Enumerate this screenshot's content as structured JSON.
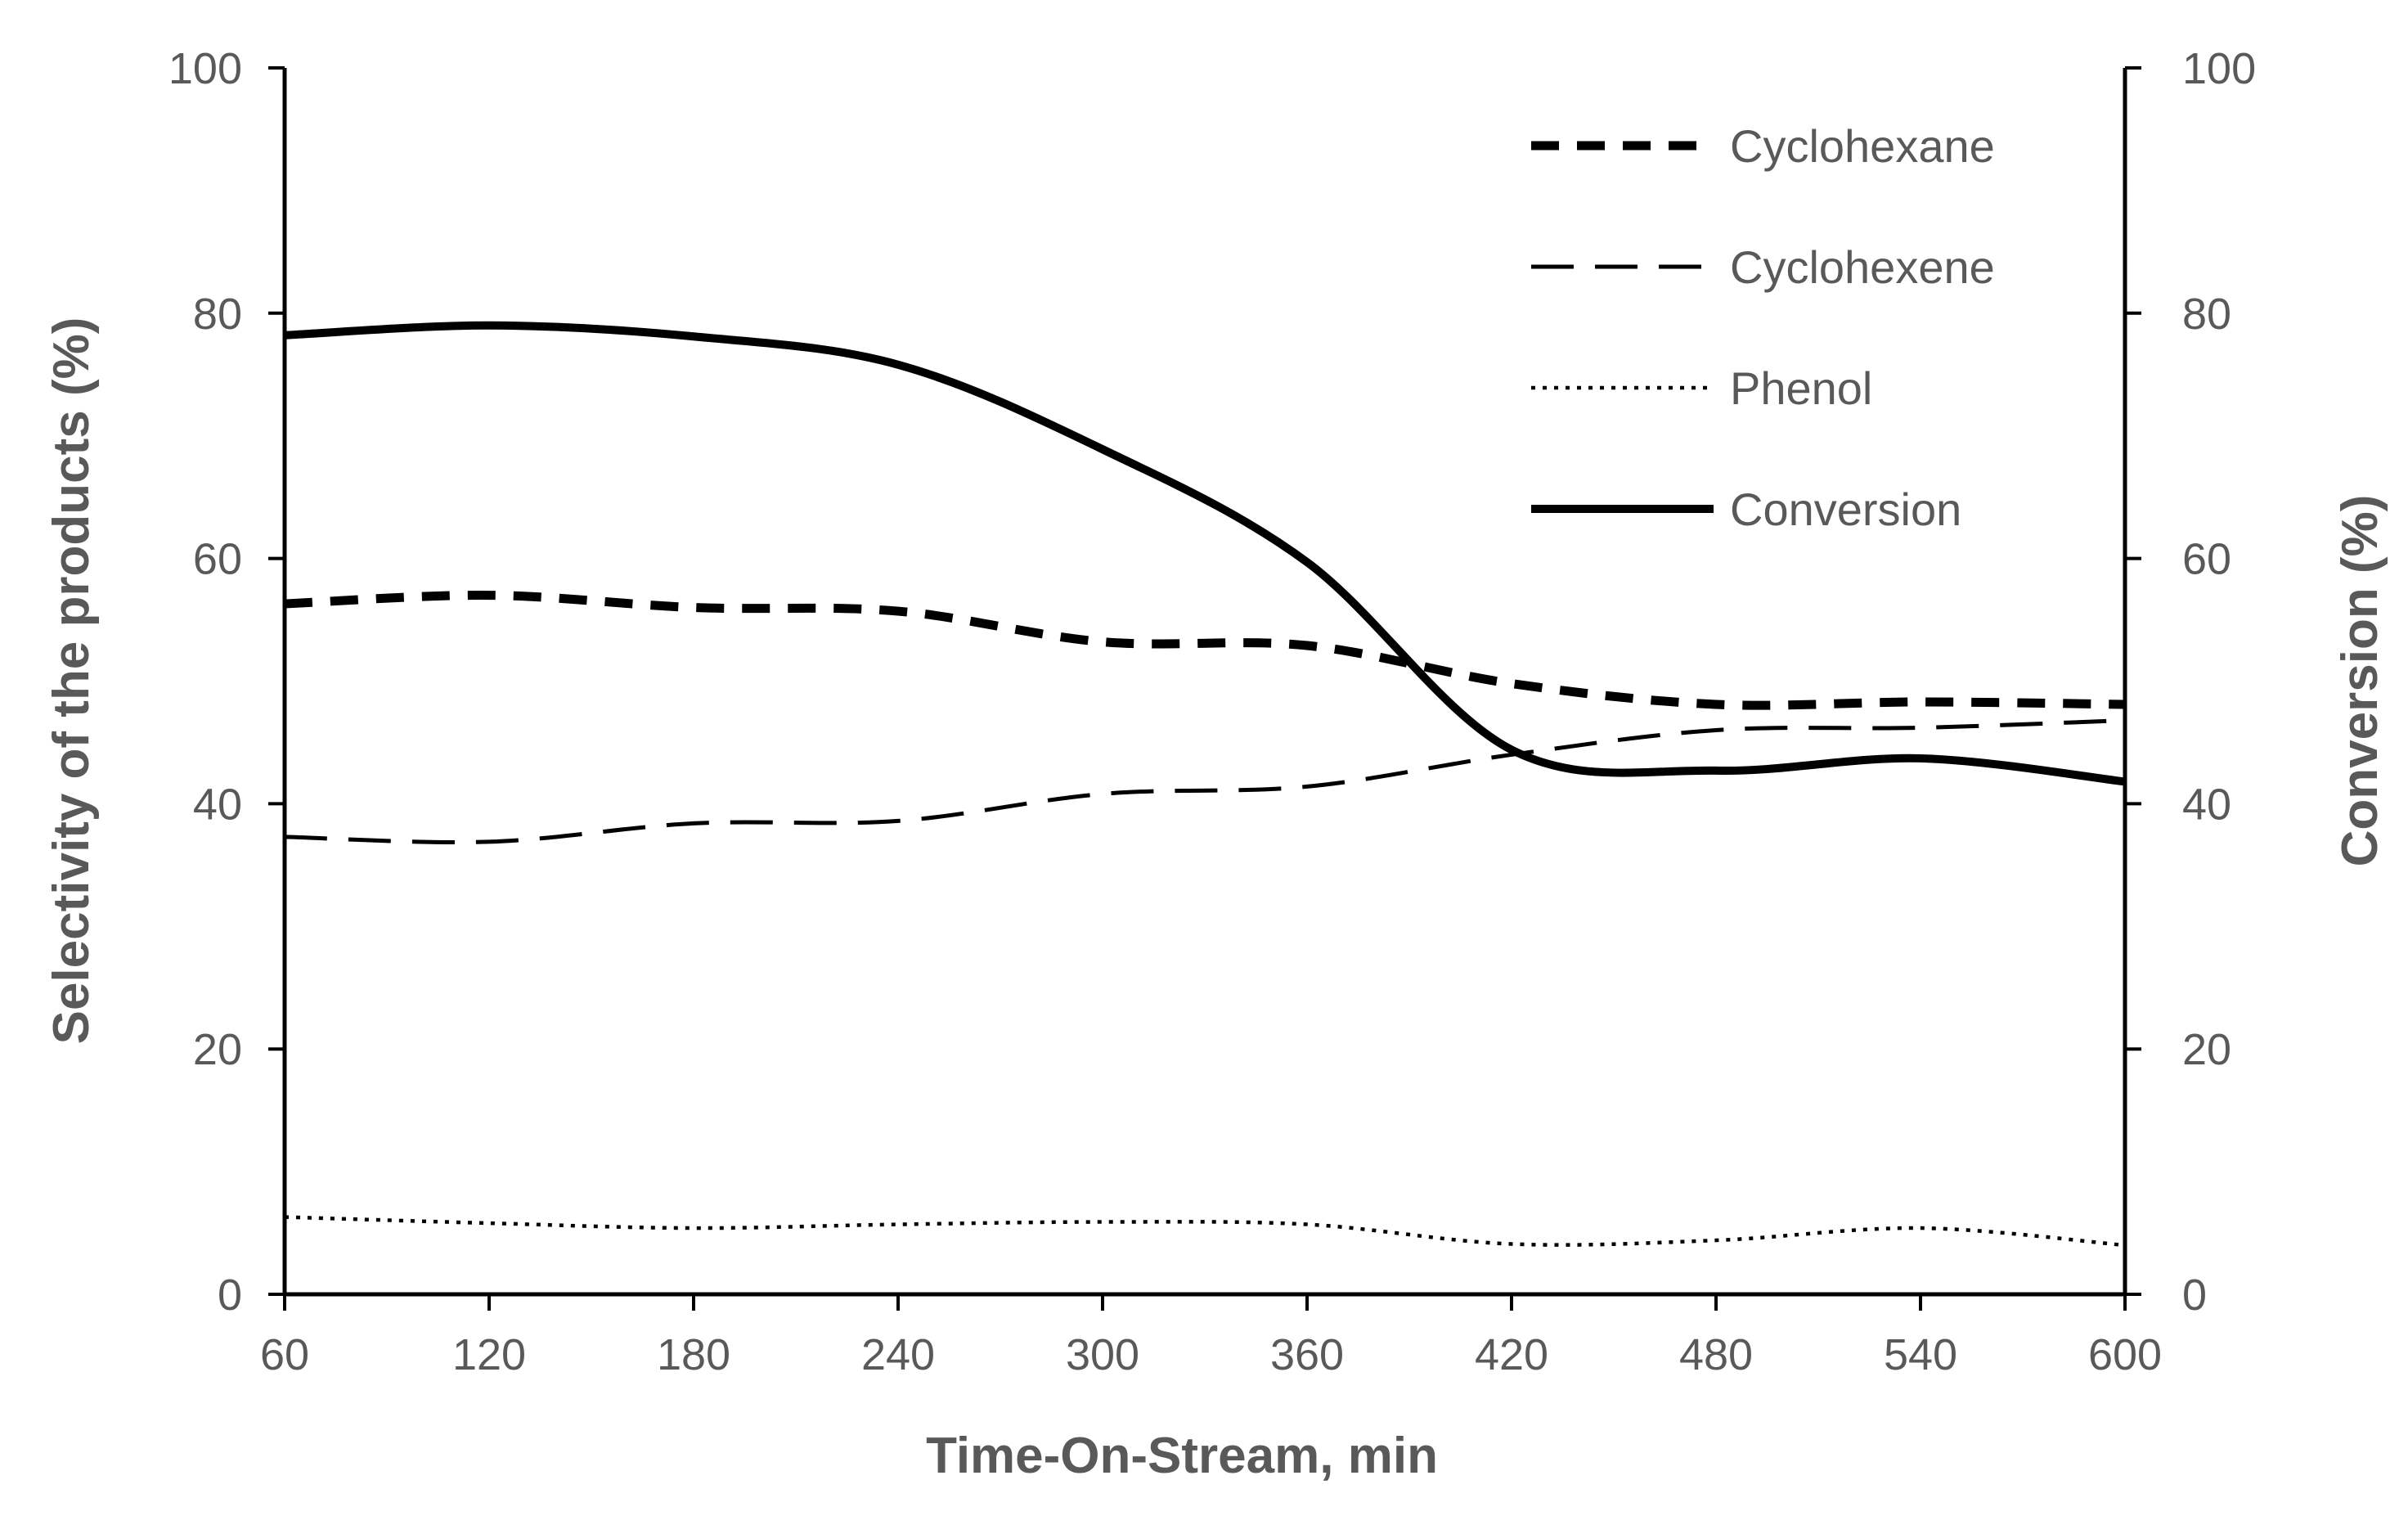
{
  "chart_data": {
    "type": "line",
    "title": "",
    "xlabel": "Time-On-Stream, min",
    "ylabel_left": "Selectivity of the products (%)",
    "ylabel_right": "Conversion (%)",
    "xlim": [
      60,
      600
    ],
    "ylim_left": [
      0,
      100
    ],
    "ylim_right": [
      0,
      100
    ],
    "x_ticks": [
      "60",
      "120",
      "180",
      "240",
      "300",
      "360",
      "420",
      "480",
      "540",
      "600"
    ],
    "y_ticks_left": [
      "0",
      "20",
      "40",
      "60",
      "80",
      "100"
    ],
    "y_ticks_right": [
      "0",
      "20",
      "40",
      "60",
      "80",
      "100"
    ],
    "grid": false,
    "legend_position": "top-right",
    "x": [
      60,
      120,
      180,
      240,
      300,
      360,
      420,
      480,
      540,
      600
    ],
    "series": [
      {
        "name": "Cyclohexane",
        "axis": "left",
        "style": "short-dash-thick",
        "color": "#000000",
        "values": [
          56.3,
          57.0,
          56.0,
          55.7,
          53.2,
          52.9,
          49.8,
          48.1,
          48.3,
          48.1
        ]
      },
      {
        "name": "Cyclohexene",
        "axis": "left",
        "style": "long-dash",
        "color": "#000000",
        "values": [
          37.3,
          36.9,
          38.4,
          38.6,
          40.8,
          41.4,
          44.0,
          46.0,
          46.2,
          46.8
        ]
      },
      {
        "name": "Phenol",
        "axis": "left",
        "style": "dotted",
        "color": "#000000",
        "values": [
          6.3,
          5.8,
          5.4,
          5.7,
          5.9,
          5.7,
          4.1,
          4.4,
          5.4,
          4.0
        ]
      },
      {
        "name": "Conversion",
        "axis": "right",
        "style": "solid",
        "color": "#000000",
        "values": [
          78.2,
          79.0,
          78.1,
          75.8,
          68.9,
          59.7,
          44.4,
          42.7,
          43.7,
          41.8
        ]
      }
    ]
  }
}
